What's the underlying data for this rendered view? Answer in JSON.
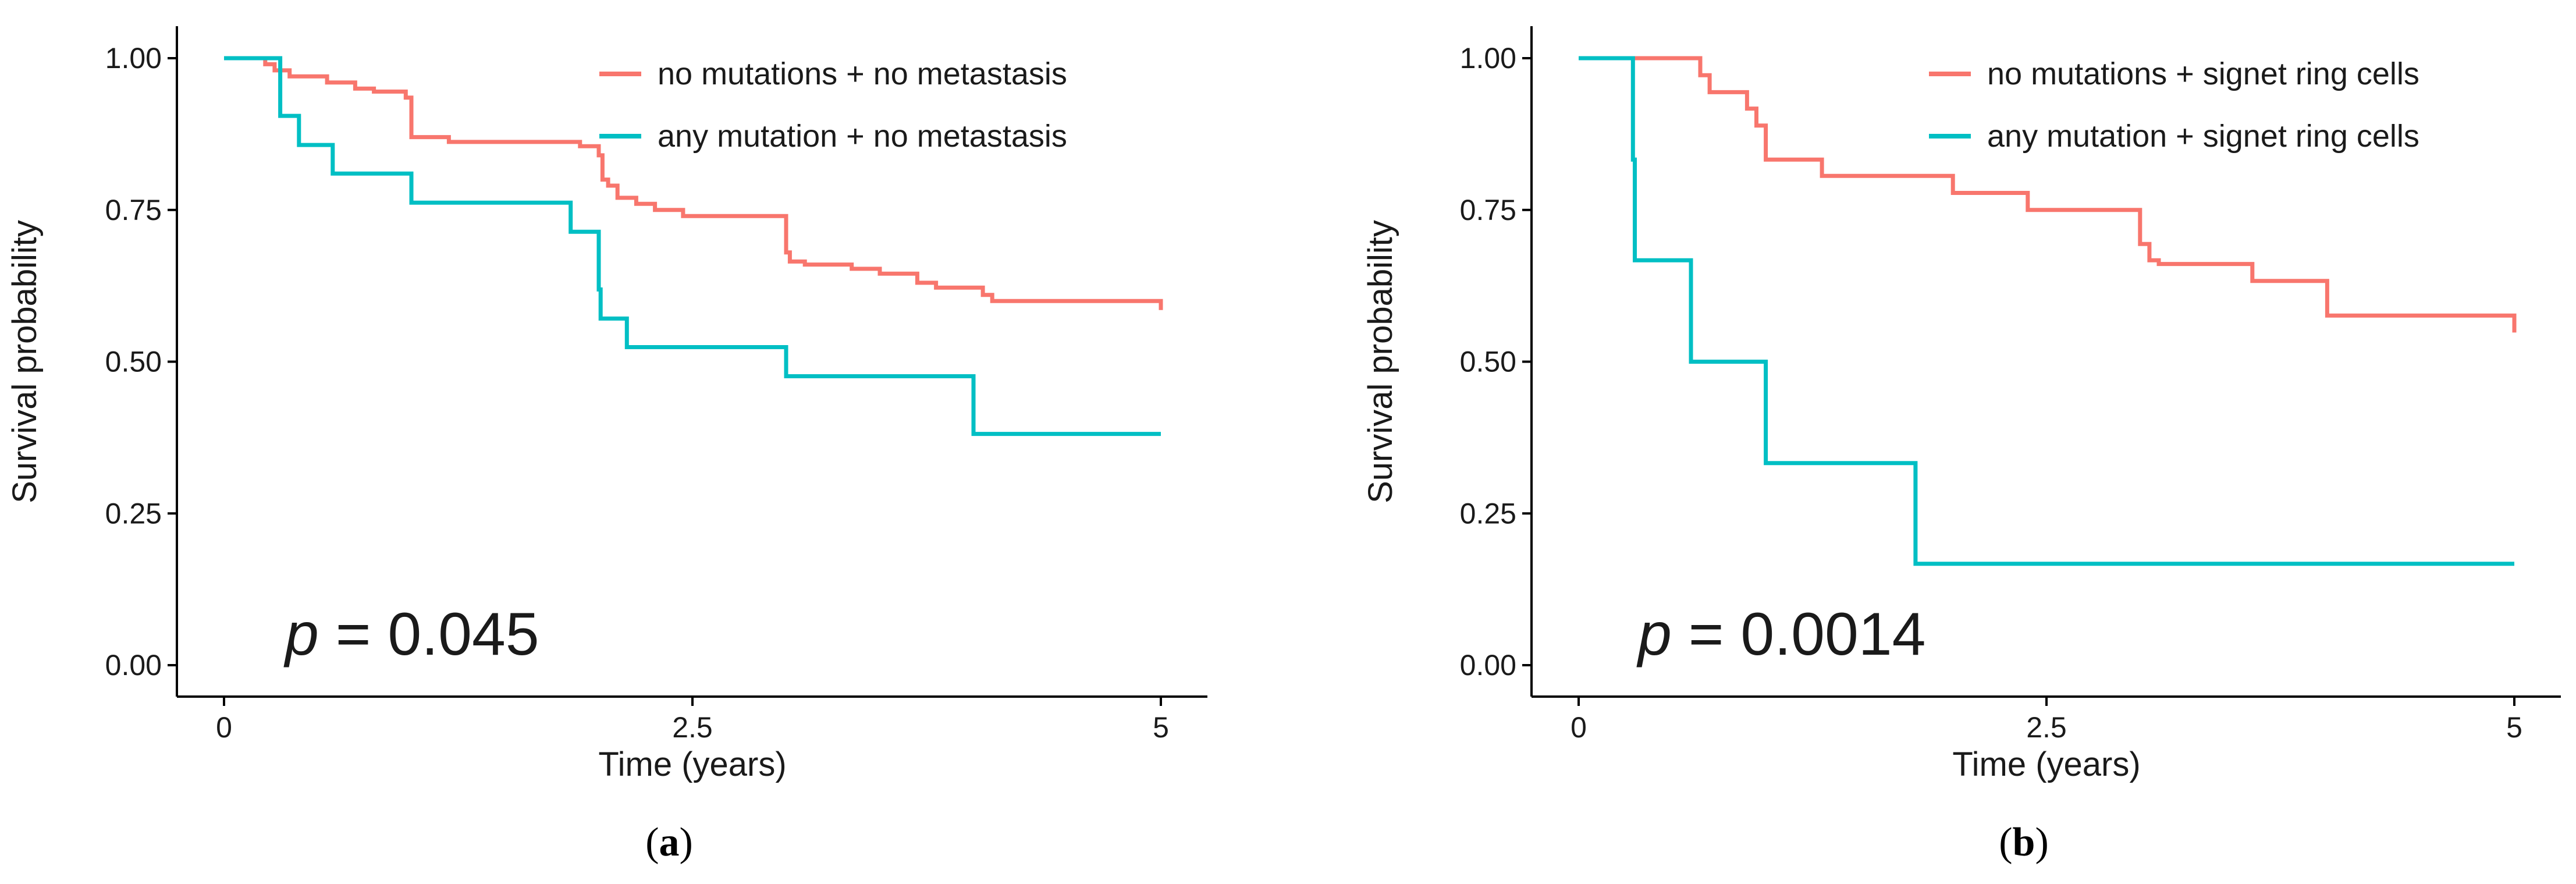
{
  "chart_data": [
    {
      "type": "line",
      "panel_label": "a",
      "title": "",
      "xlabel": "Time (years)",
      "ylabel": "Survival probability",
      "xlim": [
        0,
        5
      ],
      "ylim": [
        0,
        1
      ],
      "x_ticks": [
        0,
        2.5,
        5
      ],
      "x_tick_labels": [
        "0",
        "2.5",
        "5"
      ],
      "y_ticks": [
        0,
        0.25,
        0.5,
        0.75,
        1
      ],
      "y_tick_labels": [
        "0.00",
        "0.25",
        "0.50",
        "0.75",
        "1.00"
      ],
      "grid": false,
      "legend_position": "top-right",
      "p_label": "p",
      "p_value": "= 0.045",
      "series": [
        {
          "name": "no mutations + no metastasis",
          "color": "#f8766d",
          "step": [
            [
              0,
              1.0
            ],
            [
              0.22,
              0.99
            ],
            [
              0.27,
              0.98
            ],
            [
              0.35,
              0.97
            ],
            [
              0.55,
              0.96
            ],
            [
              0.7,
              0.95
            ],
            [
              0.8,
              0.945
            ],
            [
              0.97,
              0.935
            ],
            [
              1.0,
              0.87
            ],
            [
              1.2,
              0.862
            ],
            [
              1.9,
              0.855
            ],
            [
              2.0,
              0.84
            ],
            [
              2.02,
              0.8
            ],
            [
              2.05,
              0.79
            ],
            [
              2.1,
              0.77
            ],
            [
              2.2,
              0.76
            ],
            [
              2.3,
              0.75
            ],
            [
              2.45,
              0.74
            ],
            [
              3.0,
              0.68
            ],
            [
              3.02,
              0.665
            ],
            [
              3.1,
              0.66
            ],
            [
              3.35,
              0.653
            ],
            [
              3.5,
              0.645
            ],
            [
              3.7,
              0.63
            ],
            [
              3.8,
              0.622
            ],
            [
              4.05,
              0.61
            ],
            [
              4.1,
              0.6
            ],
            [
              5.0,
              0.585
            ]
          ],
          "end": 5.0
        },
        {
          "name": "any mutation + no metastasis",
          "color": "#00bfc4",
          "step": [
            [
              0,
              1.0
            ],
            [
              0.3,
              0.905
            ],
            [
              0.4,
              0.857
            ],
            [
              0.58,
              0.81
            ],
            [
              1.0,
              0.762
            ],
            [
              1.85,
              0.714
            ],
            [
              2.0,
              0.619
            ],
            [
              2.01,
              0.571
            ],
            [
              2.15,
              0.524
            ],
            [
              3.0,
              0.476
            ],
            [
              4.0,
              0.381
            ]
          ],
          "end": 5.0
        }
      ]
    },
    {
      "type": "line",
      "panel_label": "b",
      "title": "",
      "xlabel": "Time (years)",
      "ylabel": "Survival probability",
      "xlim": [
        0,
        5
      ],
      "ylim": [
        0,
        1
      ],
      "x_ticks": [
        0,
        2.5,
        5
      ],
      "x_tick_labels": [
        "0",
        "2.5",
        "5"
      ],
      "y_ticks": [
        0,
        0.25,
        0.5,
        0.75,
        1
      ],
      "y_tick_labels": [
        "0.00",
        "0.25",
        "0.50",
        "0.75",
        "1.00"
      ],
      "grid": false,
      "legend_position": "top-right",
      "p_label": "p",
      "p_value": "= 0.0014",
      "series": [
        {
          "name": "no mutations + signet ring cells",
          "color": "#f8766d",
          "step": [
            [
              0,
              1.0
            ],
            [
              0.65,
              0.972
            ],
            [
              0.7,
              0.944
            ],
            [
              0.9,
              0.917
            ],
            [
              0.95,
              0.889
            ],
            [
              1.0,
              0.833
            ],
            [
              1.3,
              0.806
            ],
            [
              2.0,
              0.778
            ],
            [
              2.4,
              0.75
            ],
            [
              3.0,
              0.694
            ],
            [
              3.05,
              0.667
            ],
            [
              3.1,
              0.661
            ],
            [
              3.6,
              0.633
            ],
            [
              4.0,
              0.576
            ],
            [
              5.0,
              0.548
            ]
          ],
          "end": 5.0
        },
        {
          "name": "any mutation + signet ring cells",
          "color": "#00bfc4",
          "step": [
            [
              0,
              1.0
            ],
            [
              0.29,
              0.833
            ],
            [
              0.3,
              0.667
            ],
            [
              0.6,
              0.5
            ],
            [
              1.0,
              0.333
            ],
            [
              1.8,
              0.167
            ]
          ],
          "end": 5.0
        }
      ]
    }
  ]
}
